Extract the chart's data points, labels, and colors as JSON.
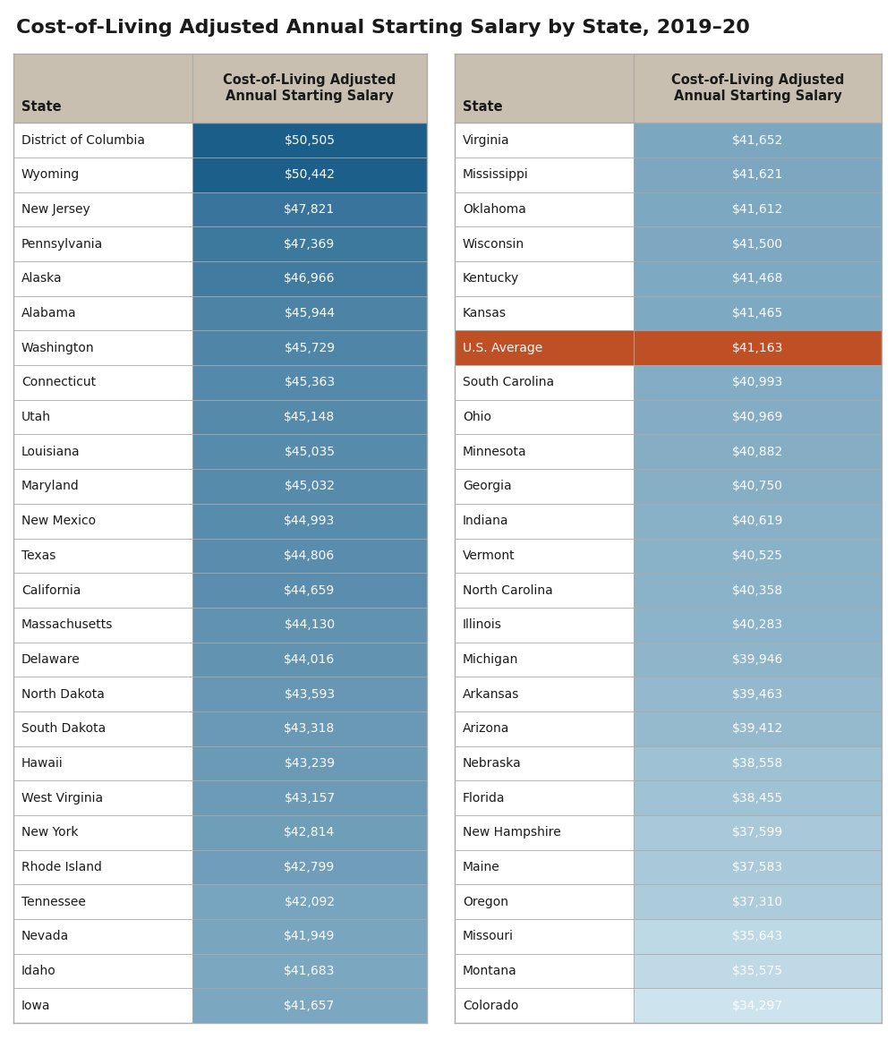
{
  "title": "Cost-of-Living Adjusted Annual Starting Salary by State, 2019–20",
  "col_header": "Cost-of-Living Adjusted\nAnnual Starting Salary",
  "left_data": [
    [
      "District of Columbia",
      "$50,505",
      50505
    ],
    [
      "Wyoming",
      "$50,442",
      50442
    ],
    [
      "New Jersey",
      "$47,821",
      47821
    ],
    [
      "Pennsylvania",
      "$47,369",
      47369
    ],
    [
      "Alaska",
      "$46,966",
      46966
    ],
    [
      "Alabama",
      "$45,944",
      45944
    ],
    [
      "Washington",
      "$45,729",
      45729
    ],
    [
      "Connecticut",
      "$45,363",
      45363
    ],
    [
      "Utah",
      "$45,148",
      45148
    ],
    [
      "Louisiana",
      "$45,035",
      45035
    ],
    [
      "Maryland",
      "$45,032",
      45032
    ],
    [
      "New Mexico",
      "$44,993",
      44993
    ],
    [
      "Texas",
      "$44,806",
      44806
    ],
    [
      "California",
      "$44,659",
      44659
    ],
    [
      "Massachusetts",
      "$44,130",
      44130
    ],
    [
      "Delaware",
      "$44,016",
      44016
    ],
    [
      "North Dakota",
      "$43,593",
      43593
    ],
    [
      "South Dakota",
      "$43,318",
      43318
    ],
    [
      "Hawaii",
      "$43,239",
      43239
    ],
    [
      "West Virginia",
      "$43,157",
      43157
    ],
    [
      "New York",
      "$42,814",
      42814
    ],
    [
      "Rhode Island",
      "$42,799",
      42799
    ],
    [
      "Tennessee",
      "$42,092",
      42092
    ],
    [
      "Nevada",
      "$41,949",
      41949
    ],
    [
      "Idaho",
      "$41,683",
      41683
    ],
    [
      "Iowa",
      "$41,657",
      41657
    ]
  ],
  "right_data": [
    [
      "Virginia",
      "$41,652",
      41652,
      false
    ],
    [
      "Mississippi",
      "$41,621",
      41621,
      false
    ],
    [
      "Oklahoma",
      "$41,612",
      41612,
      false
    ],
    [
      "Wisconsin",
      "$41,500",
      41500,
      false
    ],
    [
      "Kentucky",
      "$41,468",
      41468,
      false
    ],
    [
      "Kansas",
      "$41,465",
      41465,
      false
    ],
    [
      "U.S. Average",
      "$41,163",
      41163,
      true
    ],
    [
      "South Carolina",
      "$40,993",
      40993,
      false
    ],
    [
      "Ohio",
      "$40,969",
      40969,
      false
    ],
    [
      "Minnesota",
      "$40,882",
      40882,
      false
    ],
    [
      "Georgia",
      "$40,750",
      40750,
      false
    ],
    [
      "Indiana",
      "$40,619",
      40619,
      false
    ],
    [
      "Vermont",
      "$40,525",
      40525,
      false
    ],
    [
      "North Carolina",
      "$40,358",
      40358,
      false
    ],
    [
      "Illinois",
      "$40,283",
      40283,
      false
    ],
    [
      "Michigan",
      "$39,946",
      39946,
      false
    ],
    [
      "Arkansas",
      "$39,463",
      39463,
      false
    ],
    [
      "Arizona",
      "$39,412",
      39412,
      false
    ],
    [
      "Nebraska",
      "$38,558",
      38558,
      false
    ],
    [
      "Florida",
      "$38,455",
      38455,
      false
    ],
    [
      "New Hampshire",
      "$37,599",
      37599,
      false
    ],
    [
      "Maine",
      "$37,583",
      37583,
      false
    ],
    [
      "Oregon",
      "$37,310",
      37310,
      false
    ],
    [
      "Missouri",
      "$35,643",
      35643,
      false
    ],
    [
      "Montana",
      "$35,575",
      35575,
      false
    ],
    [
      "Colorado",
      "$34,297",
      34297,
      false
    ]
  ],
  "header_bg": "#c8bfb0",
  "dark_blue": "#1b5e8a",
  "mid_blue1": "#2e7aa8",
  "mid_blue2": "#4a8fb5",
  "light_blue1": "#6ba5c4",
  "light_blue2": "#85b8d0",
  "light_blue3": "#9ec8da",
  "light_blue4": "#b4d4e2",
  "lightest_blue": "#cce2ec",
  "orange_red": "#bf5025",
  "white": "#ffffff",
  "text_dark": "#1a1a1a",
  "grid_color": "#aaaaaa",
  "title_color": "#1a1a1a",
  "background_color": "#ffffff",
  "max_val": 50505,
  "min_val": 34297,
  "avg_val": 41163
}
